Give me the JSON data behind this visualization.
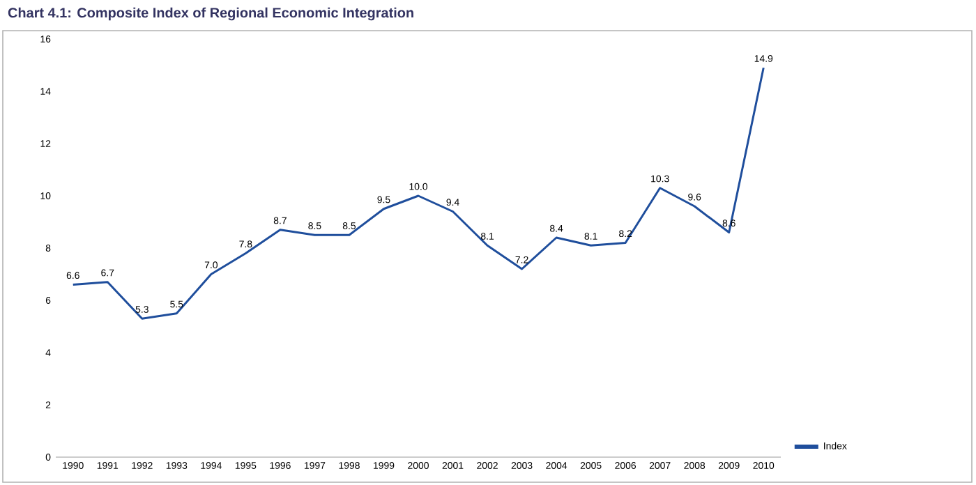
{
  "chart_data": {
    "type": "line",
    "title": "Chart 4.1: Composite Index of Regional Economic Integration",
    "categories": [
      "1990",
      "1991",
      "1992",
      "1993",
      "1994",
      "1995",
      "1996",
      "1997",
      "1998",
      "1999",
      "2000",
      "2001",
      "2002",
      "2003",
      "2004",
      "2005",
      "2006",
      "2007",
      "2008",
      "2009",
      "2010"
    ],
    "series": [
      {
        "name": "Index",
        "color": "#1f4e9c",
        "values": [
          6.6,
          6.7,
          5.3,
          5.5,
          7.0,
          7.8,
          8.7,
          8.5,
          8.5,
          9.5,
          10.0,
          9.4,
          8.1,
          7.2,
          8.4,
          8.1,
          8.2,
          10.3,
          9.6,
          8.6,
          14.9
        ],
        "value_labels": [
          "6.6",
          "6.7",
          "5.3",
          "5.5",
          "7.0",
          "7.8",
          "8.7",
          "8.5",
          "8.5",
          "9.5",
          "10.0",
          "9.4",
          "8.1",
          "7.2",
          "8.4",
          "8.1",
          "8.2",
          "10.3",
          "9.6",
          "8.6",
          "14.9"
        ]
      }
    ],
    "ylim": [
      0,
      16
    ],
    "yticks": [
      0,
      2,
      4,
      6,
      8,
      10,
      12,
      14,
      16
    ],
    "grid": false,
    "legend": "bottom right",
    "marker": "none",
    "line_style": "solid"
  }
}
